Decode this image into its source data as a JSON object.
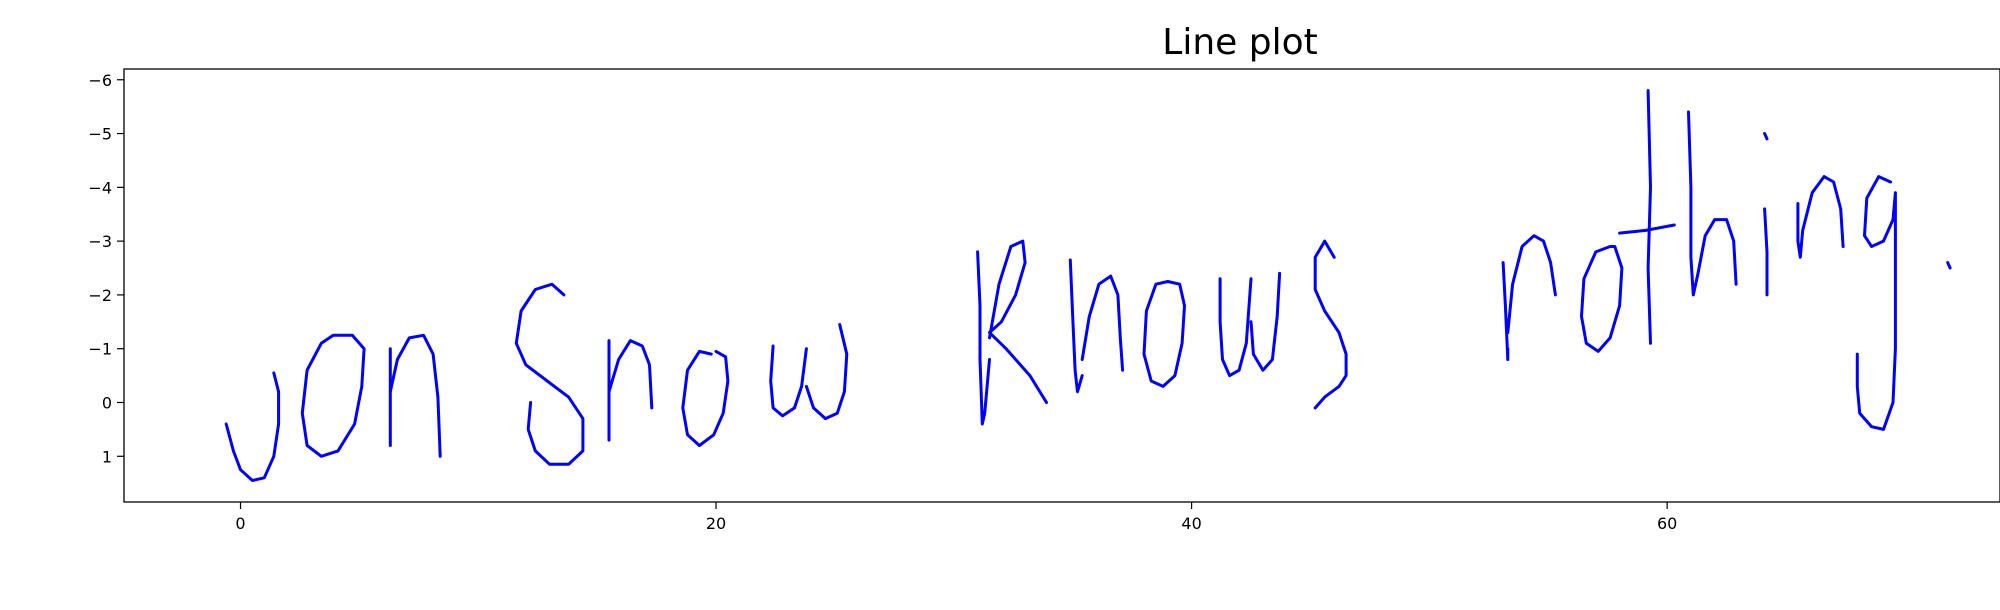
{
  "chart_data": {
    "type": "line",
    "title": "Line plot",
    "xlabel": "",
    "ylabel": "",
    "xlim": [
      -4.9,
      74
    ],
    "ylim": [
      1.85,
      -6.2
    ],
    "y_inverted": true,
    "grid": false,
    "x_ticks": [
      0,
      20,
      40,
      60
    ],
    "x_tick_labels": [
      "0",
      "20",
      "40",
      "60"
    ],
    "y_ticks": [
      -6,
      -5,
      -4,
      -3,
      -2,
      -1,
      0,
      1
    ],
    "y_tick_labels": [
      "−6",
      "−5",
      "−4",
      "−3",
      "−2",
      "−1",
      "0",
      "1"
    ],
    "line_color": "#0000ff",
    "series": [
      {
        "strokes": [
          [
            [
              -0.6,
              0.4
            ],
            [
              -0.3,
              0.9
            ],
            [
              0,
              1.25
            ],
            [
              0.5,
              1.45
            ],
            [
              1,
              1.4
            ],
            [
              1.4,
              1.0
            ],
            [
              1.6,
              0.4
            ],
            [
              1.6,
              -0.2
            ],
            [
              1.4,
              -0.55
            ]
          ],
          [
            [
              3.9,
              -1.25
            ],
            [
              3.4,
              -1.1
            ],
            [
              2.8,
              -0.6
            ],
            [
              2.6,
              0.2
            ],
            [
              2.8,
              0.8
            ],
            [
              3.4,
              1.0
            ],
            [
              4.1,
              0.9
            ],
            [
              4.8,
              0.4
            ],
            [
              5.1,
              -0.3
            ],
            [
              5.2,
              -1.0
            ],
            [
              4.7,
              -1.25
            ],
            [
              3.9,
              -1.25
            ]
          ],
          [
            [
              6.3,
              -1.0
            ],
            [
              6.3,
              0.8
            ]
          ],
          [
            [
              6.3,
              -0.2
            ],
            [
              6.6,
              -0.8
            ],
            [
              7.1,
              -1.2
            ],
            [
              7.7,
              -1.25
            ],
            [
              8.1,
              -0.9
            ],
            [
              8.3,
              -0.1
            ],
            [
              8.4,
              1.0
            ]
          ],
          [
            [
              13.6,
              -2.0
            ],
            [
              13.1,
              -2.2
            ],
            [
              12.4,
              -2.1
            ],
            [
              11.8,
              -1.7
            ],
            [
              11.6,
              -1.1
            ],
            [
              12.0,
              -0.7
            ],
            [
              12.9,
              -0.4
            ],
            [
              13.8,
              -0.1
            ],
            [
              14.4,
              0.3
            ],
            [
              14.4,
              0.9
            ],
            [
              13.8,
              1.15
            ],
            [
              13.0,
              1.15
            ],
            [
              12.4,
              0.9
            ],
            [
              12.1,
              0.5
            ],
            [
              12.2,
              0.0
            ]
          ],
          [
            [
              15.5,
              -1.15
            ],
            [
              15.5,
              0.7
            ]
          ],
          [
            [
              15.5,
              -0.2
            ],
            [
              15.9,
              -0.8
            ],
            [
              16.4,
              -1.15
            ],
            [
              16.9,
              -1.05
            ],
            [
              17.2,
              -0.7
            ],
            [
              17.3,
              0.1
            ]
          ],
          [
            [
              19.8,
              -0.9
            ],
            [
              19.3,
              -0.95
            ],
            [
              18.8,
              -0.6
            ],
            [
              18.6,
              0.1
            ],
            [
              18.8,
              0.6
            ],
            [
              19.3,
              0.8
            ],
            [
              19.9,
              0.6
            ],
            [
              20.3,
              0.2
            ],
            [
              20.5,
              -0.4
            ],
            [
              20.4,
              -0.85
            ],
            [
              20.0,
              -0.95
            ]
          ],
          [
            [
              22.4,
              -1.05
            ],
            [
              22.3,
              -0.4
            ],
            [
              22.4,
              0.1
            ],
            [
              22.8,
              0.25
            ],
            [
              23.3,
              0.1
            ],
            [
              23.6,
              -0.3
            ],
            [
              23.8,
              -1.0
            ]
          ],
          [
            [
              23.8,
              -0.3
            ],
            [
              24.1,
              0.1
            ],
            [
              24.6,
              0.3
            ],
            [
              25.1,
              0.2
            ],
            [
              25.4,
              -0.2
            ],
            [
              25.5,
              -0.9
            ],
            [
              25.2,
              -1.45
            ]
          ],
          [
            [
              31.0,
              -2.8
            ],
            [
              31.1,
              -1.8
            ],
            [
              31.1,
              -0.8
            ],
            [
              31.2,
              0.4
            ],
            [
              31.3,
              0.2
            ],
            [
              31.5,
              -0.8
            ]
          ],
          [
            [
              31.5,
              -1.2
            ],
            [
              31.9,
              -2.2
            ],
            [
              32.4,
              -2.9
            ],
            [
              32.9,
              -3.0
            ],
            [
              33.0,
              -2.6
            ],
            [
              32.6,
              -2.0
            ],
            [
              32.0,
              -1.5
            ],
            [
              31.5,
              -1.3
            ],
            [
              32.2,
              -1.0
            ],
            [
              33.2,
              -0.5
            ],
            [
              33.9,
              0.0
            ]
          ],
          [
            [
              34.9,
              -2.65
            ],
            [
              35.0,
              -1.6
            ],
            [
              35.1,
              -0.6
            ],
            [
              35.2,
              -0.2
            ],
            [
              35.4,
              -0.5
            ]
          ],
          [
            [
              35.4,
              -0.8
            ],
            [
              35.7,
              -1.6
            ],
            [
              36.1,
              -2.2
            ],
            [
              36.6,
              -2.35
            ],
            [
              36.9,
              -2.0
            ],
            [
              37.0,
              -1.2
            ],
            [
              37.1,
              -0.6
            ]
          ],
          [
            [
              39.0,
              -2.25
            ],
            [
              38.5,
              -2.2
            ],
            [
              38.1,
              -1.7
            ],
            [
              38.0,
              -0.9
            ],
            [
              38.3,
              -0.4
            ],
            [
              38.8,
              -0.3
            ],
            [
              39.3,
              -0.5
            ],
            [
              39.6,
              -1.1
            ],
            [
              39.7,
              -1.8
            ],
            [
              39.5,
              -2.2
            ],
            [
              39.0,
              -2.25
            ]
          ],
          [
            [
              41.2,
              -2.3
            ],
            [
              41.2,
              -1.5
            ],
            [
              41.3,
              -0.8
            ],
            [
              41.6,
              -0.5
            ],
            [
              42.0,
              -0.6
            ],
            [
              42.3,
              -1.1
            ],
            [
              42.5,
              -2.3
            ]
          ],
          [
            [
              42.5,
              -1.5
            ],
            [
              42.6,
              -0.9
            ],
            [
              43.0,
              -0.6
            ],
            [
              43.4,
              -0.8
            ],
            [
              43.6,
              -1.6
            ],
            [
              43.7,
              -2.4
            ]
          ],
          [
            [
              46.0,
              -2.7
            ],
            [
              45.6,
              -3.0
            ],
            [
              45.2,
              -2.7
            ],
            [
              45.2,
              -2.1
            ],
            [
              45.6,
              -1.7
            ],
            [
              46.2,
              -1.3
            ],
            [
              46.5,
              -0.9
            ],
            [
              46.5,
              -0.5
            ],
            [
              46.2,
              -0.3
            ],
            [
              45.6,
              -0.1
            ],
            [
              45.2,
              0.1
            ]
          ],
          [
            [
              53.1,
              -2.6
            ],
            [
              53.2,
              -1.8
            ],
            [
              53.3,
              -0.8
            ],
            [
              53.3,
              -1.0
            ]
          ],
          [
            [
              53.3,
              -1.3
            ],
            [
              53.5,
              -2.2
            ],
            [
              53.9,
              -2.9
            ],
            [
              54.4,
              -3.1
            ],
            [
              54.8,
              -3.0
            ],
            [
              55.1,
              -2.6
            ],
            [
              55.3,
              -2.0
            ]
          ],
          [
            [
              57.6,
              -2.9
            ],
            [
              57.0,
              -2.8
            ],
            [
              56.5,
              -2.3
            ],
            [
              56.4,
              -1.6
            ],
            [
              56.6,
              -1.1
            ],
            [
              57.1,
              -0.95
            ],
            [
              57.6,
              -1.2
            ],
            [
              58.0,
              -1.8
            ],
            [
              58.1,
              -2.5
            ],
            [
              57.8,
              -2.9
            ],
            [
              57.6,
              -2.9
            ]
          ],
          [
            [
              59.2,
              -5.8
            ],
            [
              59.3,
              -4.0
            ],
            [
              59.2,
              -2.5
            ],
            [
              59.3,
              -1.1
            ]
          ],
          [
            [
              58.0,
              -3.15
            ],
            [
              59.1,
              -3.2
            ],
            [
              60.3,
              -3.3
            ]
          ],
          [
            [
              60.9,
              -5.4
            ],
            [
              61.0,
              -4.0
            ],
            [
              61.0,
              -2.7
            ],
            [
              61.1,
              -2.0
            ],
            [
              61.3,
              -2.4
            ]
          ],
          [
            [
              61.3,
              -2.4
            ],
            [
              61.6,
              -3.1
            ],
            [
              62.0,
              -3.4
            ],
            [
              62.5,
              -3.4
            ],
            [
              62.8,
              -3.0
            ],
            [
              62.9,
              -2.2
            ]
          ],
          [
            [
              64.1,
              -5.0
            ],
            [
              64.2,
              -4.9
            ]
          ],
          [
            [
              64.1,
              -3.6
            ],
            [
              64.2,
              -2.8
            ],
            [
              64.2,
              -2.0
            ]
          ],
          [
            [
              65.5,
              -3.7
            ],
            [
              65.5,
              -3.0
            ],
            [
              65.6,
              -2.7
            ],
            [
              65.7,
              -3.2
            ],
            [
              66.1,
              -3.9
            ],
            [
              66.6,
              -4.2
            ],
            [
              67.0,
              -4.1
            ],
            [
              67.3,
              -3.6
            ],
            [
              67.4,
              -2.9
            ]
          ],
          [
            [
              69.4,
              -4.1
            ],
            [
              68.9,
              -4.2
            ],
            [
              68.4,
              -3.8
            ],
            [
              68.3,
              -3.1
            ],
            [
              68.6,
              -2.9
            ],
            [
              69.1,
              -3.0
            ],
            [
              69.5,
              -3.4
            ],
            [
              69.6,
              -3.9
            ],
            [
              69.6,
              -2.5
            ],
            [
              69.6,
              -1.0
            ],
            [
              69.5,
              0.0
            ],
            [
              69.1,
              0.5
            ],
            [
              68.6,
              0.45
            ],
            [
              68.1,
              0.2
            ],
            [
              68.0,
              -0.3
            ],
            [
              68.0,
              -0.9
            ]
          ],
          [
            [
              71.8,
              -2.6
            ],
            [
              71.9,
              -2.5
            ]
          ]
        ]
      }
    ]
  }
}
